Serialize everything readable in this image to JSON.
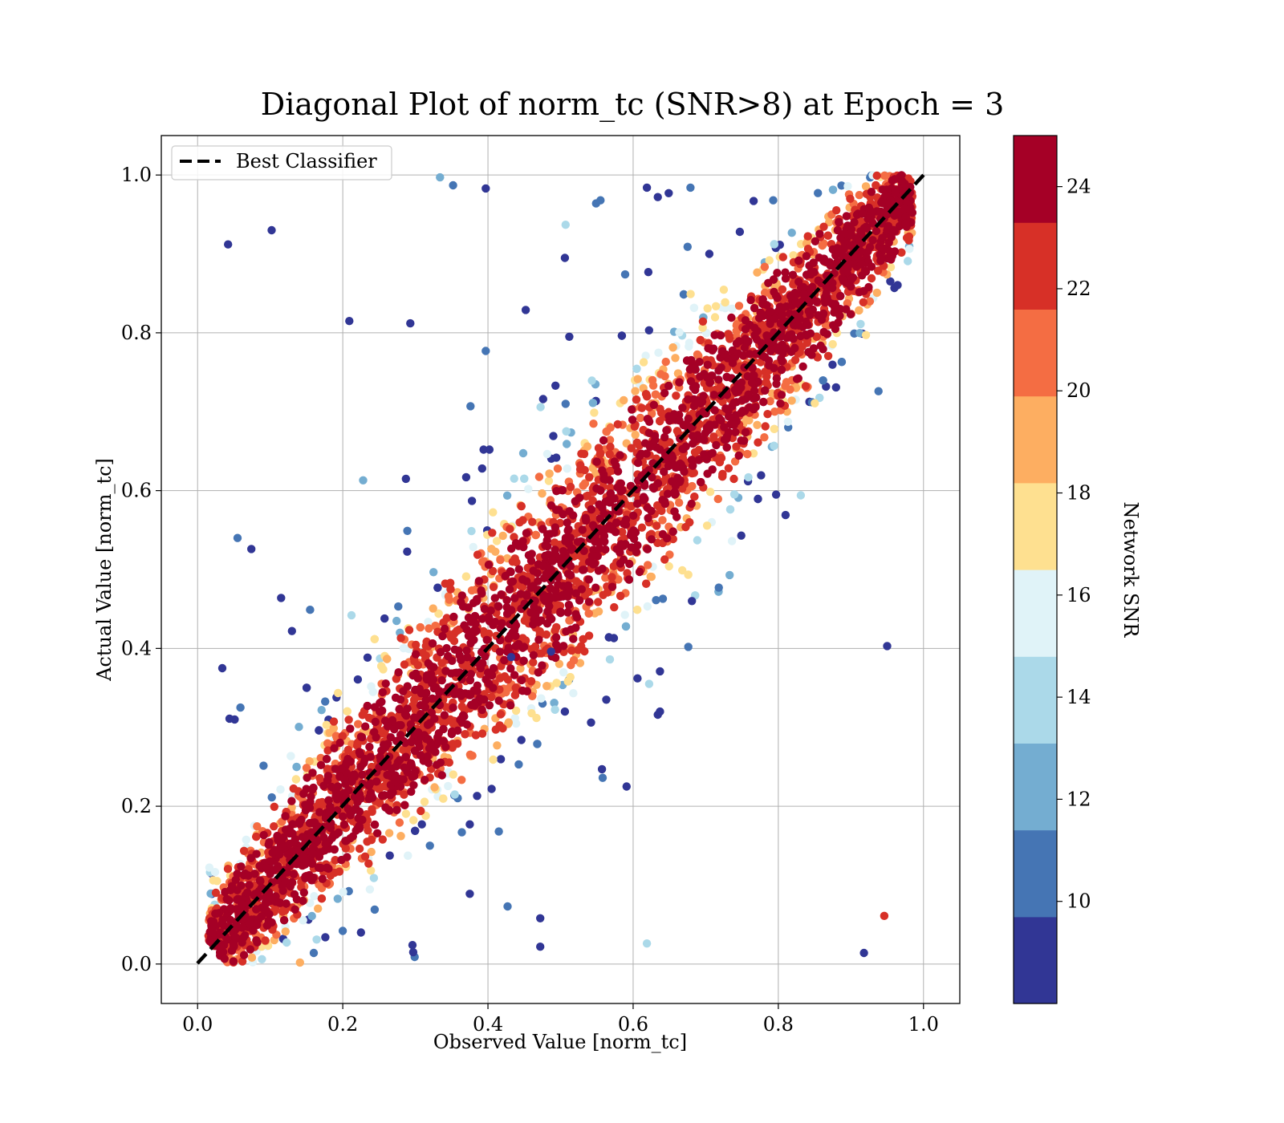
{
  "chart_data": {
    "type": "scatter",
    "title": "Diagonal Plot of norm_tc (SNR>8) at Epoch = 3",
    "xlabel": "Observed Value [norm_tc]",
    "ylabel": "Actual Value [norm_tc]",
    "xlim": [
      -0.05,
      1.05
    ],
    "ylim": [
      -0.05,
      1.05
    ],
    "xticks": [
      "0.0",
      "0.2",
      "0.4",
      "0.6",
      "0.8",
      "1.0"
    ],
    "yticks": [
      "0.0",
      "0.2",
      "0.4",
      "0.6",
      "0.8",
      "1.0"
    ],
    "xtick_values": [
      0.0,
      0.2,
      0.4,
      0.6,
      0.8,
      1.0
    ],
    "ytick_values": [
      0.0,
      0.2,
      0.4,
      0.6,
      0.8,
      1.0
    ],
    "grid": true,
    "legend": {
      "placement": "top-left",
      "entries": [
        "Best Classifier"
      ]
    },
    "reference_line": {
      "name": "Best Classifier",
      "x": [
        0.0,
        1.0
      ],
      "y": [
        0.0,
        1.0
      ],
      "style": "dashed",
      "color": "#000000"
    },
    "colorbar": {
      "label": "Network SNR",
      "range": [
        8,
        25
      ],
      "tick_values": [
        10,
        12,
        14,
        16,
        18,
        20,
        22,
        24
      ],
      "ticks": [
        "10",
        "12",
        "14",
        "16",
        "18",
        "20",
        "22",
        "24"
      ],
      "colors": [
        "#313695",
        "#4575b4",
        "#74add1",
        "#abd9e9",
        "#e0f3f8",
        "#fee090",
        "#fdae61",
        "#f46d43",
        "#d73027",
        "#a50026"
      ]
    },
    "series": [
      {
        "values_note": "",
        "points": [
          [
            0.042,
            0.912,
            8.5
          ],
          [
            0.102,
            0.93,
            8.5
          ],
          [
            0.209,
            0.815,
            8.5
          ],
          [
            0.293,
            0.812,
            8.5
          ],
          [
            0.034,
            0.375,
            8.5
          ],
          [
            0.044,
            0.311,
            8.5
          ],
          [
            0.051,
            0.31,
            9.5
          ],
          [
            0.059,
            0.325,
            10.5
          ],
          [
            0.074,
            0.526,
            8.5
          ],
          [
            0.055,
            0.54,
            10.5
          ],
          [
            0.115,
            0.464,
            8.5
          ],
          [
            0.13,
            0.422,
            8.5
          ],
          [
            0.155,
            0.449,
            10.5
          ],
          [
            0.212,
            0.442,
            14.5
          ],
          [
            0.228,
            0.613,
            11.5
          ],
          [
            0.287,
            0.615,
            8.5
          ],
          [
            0.289,
            0.549,
            10.5
          ],
          [
            0.334,
            0.997,
            11.5
          ],
          [
            0.352,
            0.987,
            10.5
          ],
          [
            0.397,
            0.983,
            8.5
          ],
          [
            0.397,
            0.777,
            10.5
          ],
          [
            0.376,
            0.707,
            10.5
          ],
          [
            0.402,
            0.652,
            8.5
          ],
          [
            0.452,
            0.829,
            8.5
          ],
          [
            0.476,
            0.716,
            8.5
          ],
          [
            0.506,
            0.895,
            8.5
          ],
          [
            0.507,
            0.937,
            14.5
          ],
          [
            0.512,
            0.795,
            8.5
          ],
          [
            0.507,
            0.71,
            10.5
          ],
          [
            0.493,
            0.733,
            8.5
          ],
          [
            0.549,
            0.964,
            10.5
          ],
          [
            0.555,
            0.968,
            10.5
          ],
          [
            0.619,
            0.984,
            8.5
          ],
          [
            0.634,
            0.972,
            8.5
          ],
          [
            0.649,
            0.977,
            8.5
          ],
          [
            0.679,
            0.984,
            10.5
          ],
          [
            0.621,
            0.877,
            8.5
          ],
          [
            0.589,
            0.874,
            10.5
          ],
          [
            0.675,
            0.909,
            10.5
          ],
          [
            0.705,
            0.9,
            8.5
          ],
          [
            0.747,
            0.928,
            8.5
          ],
          [
            0.766,
            0.967,
            8.5
          ],
          [
            0.793,
            0.968,
            10.5
          ],
          [
            0.95,
            0.403,
            8.5
          ],
          [
            0.938,
            0.726,
            10.5
          ],
          [
            0.918,
            0.014,
            8.5
          ],
          [
            0.946,
            0.061,
            22.5
          ],
          [
            0.619,
            0.026,
            14.5
          ],
          [
            0.472,
            0.022,
            8.5
          ],
          [
            0.472,
            0.058,
            8.5
          ],
          [
            0.427,
            0.073,
            10.5
          ],
          [
            0.375,
            0.089,
            8.5
          ],
          [
            0.296,
            0.024,
            8.5
          ],
          [
            0.299,
            0.009,
            10.5
          ],
          [
            0.297,
            0.015,
            8.5
          ],
          [
            0.591,
            0.225,
            8.5
          ],
          [
            0.558,
            0.236,
            10.5
          ],
          [
            0.557,
            0.247,
            8.5
          ],
          [
            0.542,
            0.306,
            8.5
          ],
          [
            0.506,
            0.32,
            8.5
          ],
          [
            0.634,
            0.316,
            8.5
          ],
          [
            0.637,
            0.32,
            8.5
          ],
          [
            0.637,
            0.371,
            8.5
          ],
          [
            0.606,
            0.362,
            8.5
          ],
          [
            0.622,
            0.355,
            14.5
          ],
          [
            0.568,
            0.386,
            14.5
          ],
          [
            0.563,
            0.335,
            8.5
          ],
          [
            0.676,
            0.402,
            10.5
          ],
          [
            0.718,
            0.477,
            10.5
          ],
          [
            0.681,
            0.46,
            8.5
          ],
          [
            0.641,
            0.463,
            10.5
          ],
          [
            0.749,
            0.543,
            8.5
          ],
          [
            0.797,
            0.595,
            8.5
          ],
          [
            0.81,
            0.569,
            8.5
          ],
          [
            0.831,
            0.594,
            14.5
          ],
          [
            0.415,
            0.168,
            10.5
          ],
          [
            0.385,
            0.213,
            8.5
          ],
          [
            0.375,
            0.177,
            8.5
          ],
          [
            0.364,
            0.167,
            10.5
          ],
          [
            0.309,
            0.177,
            8.5
          ],
          [
            0.32,
            0.15,
            10.5
          ],
          [
            0.405,
            0.222,
            8.5
          ],
          [
            0.244,
            0.069,
            10.5
          ],
          [
            0.225,
            0.04,
            8.5
          ],
          [
            0.2,
            0.042,
            10.5
          ],
          [
            0.164,
            0.031,
            14.5
          ],
          [
            0.176,
            0.034,
            8.5
          ],
          [
            0.141,
            0.002,
            18.5
          ],
          [
            0.16,
            0.014,
            10.5
          ],
          [
            0.446,
            0.284,
            8.5
          ],
          [
            0.487,
            0.396,
            8.5
          ],
          [
            0.432,
            0.389,
            8.5
          ],
          [
            0.37,
            0.617,
            8.5
          ],
          [
            0.378,
            0.587,
            8.5
          ],
          [
            0.392,
            0.628,
            8.5
          ],
          [
            0.394,
            0.652,
            8.5
          ]
        ]
      }
    ]
  }
}
